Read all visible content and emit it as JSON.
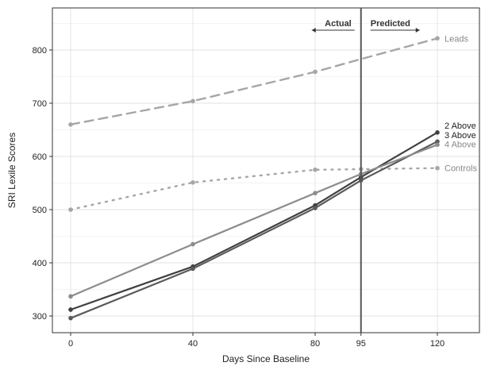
{
  "chart_data": {
    "type": "line",
    "title": "",
    "xlabel": "Days Since Baseline",
    "ylabel": "SRI Lexile Scores",
    "xlim": [
      -8,
      136
    ],
    "ylim": [
      273,
      880
    ],
    "x_ticks": [
      0,
      40,
      80,
      95,
      120
    ],
    "y_ticks": [
      300,
      400,
      500,
      600,
      700,
      800
    ],
    "grid": true,
    "legend": "direct labels at right",
    "divider": {
      "x": 95,
      "left_label": "Actual",
      "right_label": "Predicted"
    },
    "series": [
      {
        "name": "Leads",
        "style": "dashed",
        "color": "#a6a6a6",
        "x": [
          0,
          40,
          80,
          95,
          120
        ],
        "y": [
          660,
          704,
          759,
          783,
          822
        ],
        "markers": [
          0,
          40,
          80,
          120
        ]
      },
      {
        "name": "Controls",
        "style": "dotted",
        "color": "#a6a6a6",
        "x": [
          0,
          40,
          80,
          95,
          120
        ],
        "y": [
          500,
          551,
          575,
          576,
          578
        ],
        "markers": [
          0,
          40,
          80,
          95,
          120
        ]
      },
      {
        "name": "2 Above",
        "style": "solid",
        "color": "#404040",
        "x": [
          0,
          40,
          80,
          95,
          120
        ],
        "y": [
          312,
          393,
          508,
          561,
          645
        ],
        "markers": [
          0,
          40,
          80,
          95,
          120
        ]
      },
      {
        "name": "3 Above",
        "style": "solid",
        "color": "#5a5a5a",
        "x": [
          0,
          40,
          80,
          95,
          120
        ],
        "y": [
          296,
          389,
          503,
          555,
          628
        ],
        "markers": [
          0,
          40,
          80,
          95,
          120
        ]
      },
      {
        "name": "4 Above",
        "style": "solid",
        "color": "#8c8c8c",
        "x": [
          0,
          40,
          80,
          95,
          120
        ],
        "y": [
          337,
          435,
          531,
          567,
          622
        ],
        "markers": [
          0,
          40,
          80,
          95,
          120
        ]
      }
    ]
  }
}
